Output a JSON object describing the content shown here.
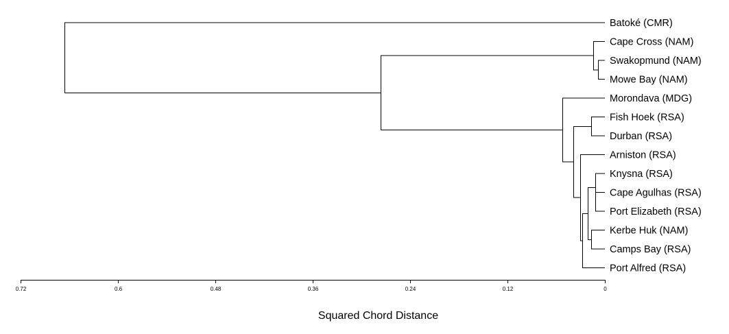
{
  "chart_data": {
    "type": "dendrogram",
    "xlabel": "Squared Chord Distance",
    "x_reversed": true,
    "xlim": [
      0.72,
      0
    ],
    "ticks": [
      "0.72",
      "0.6",
      "0.48",
      "0.36",
      "0.24",
      "0.12",
      "0"
    ],
    "tick_values": [
      0.72,
      0.6,
      0.48,
      0.36,
      0.24,
      0.12,
      0
    ],
    "leaves": [
      "Batoké (CMR)",
      "Cape Cross (NAM)",
      "Swakopmund (NAM)",
      "Mowe Bay (NAM)",
      "Morondava (MDG)",
      "Fish Hoek (RSA)",
      "Durban (RSA)",
      "Arniston (RSA)",
      "Knysna (RSA)",
      "Cape Agulhas (RSA)",
      "Port Elizabeth (RSA)",
      "Kerbe Huk (NAM)",
      "Camps Bay (RSA)",
      "Port Alfred (RSA)"
    ],
    "merges": [
      {
        "a": "L9",
        "b": "L10",
        "height": 0.0115
      },
      {
        "a": "M0",
        "b": "L8",
        "height": 0.0115
      },
      {
        "a": "L11",
        "b": "L12",
        "height": 0.0165
      },
      {
        "a": "M1",
        "b": "M2",
        "height": 0.0215
      },
      {
        "a": "M3",
        "b": "L13",
        "height": 0.0275
      },
      {
        "a": "L7",
        "b": "M4",
        "height": 0.0305
      },
      {
        "a": "L5",
        "b": "L6",
        "height": 0.0165
      },
      {
        "a": "L2",
        "b": "L3",
        "height": 0.0085
      },
      {
        "a": "L1",
        "b": "M7",
        "height": 0.0145
      },
      {
        "a": "M6",
        "b": "M5",
        "height": 0.0385
      },
      {
        "a": "L4",
        "b": "M9",
        "height": 0.0525
      },
      {
        "a": "M8",
        "b": "M10",
        "height": 0.2765
      },
      {
        "a": "L0",
        "b": "M11",
        "height": 0.6655
      }
    ]
  }
}
